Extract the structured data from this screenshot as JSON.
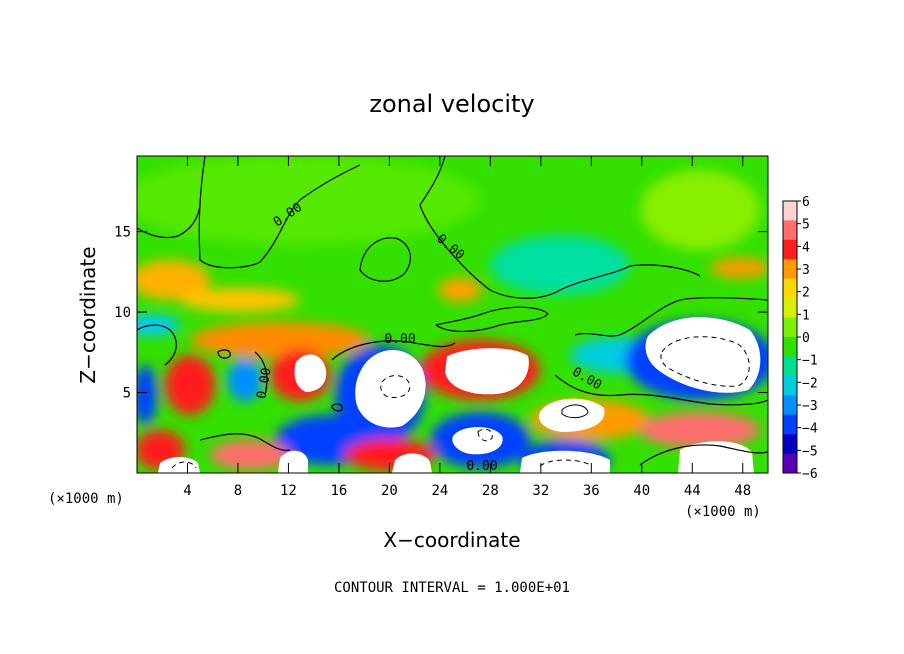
{
  "chart_data": {
    "type": "heatmap",
    "title": "zonal velocity",
    "xlabel": "X−coordinate",
    "ylabel": "Z−coordinate",
    "x_unit_left": "(×1000 m)",
    "x_unit_right": "(×1000 m)",
    "footer": "CONTOUR INTERVAL = 1.000E+01",
    "xlim": [
      0,
      50
    ],
    "ylim": [
      0,
      19.7
    ],
    "x_ticks": [
      4,
      8,
      12,
      16,
      20,
      24,
      28,
      32,
      36,
      40,
      44,
      48
    ],
    "y_ticks": [
      5,
      10,
      15
    ],
    "colorbar": {
      "ticks": [
        6,
        5,
        4,
        3,
        2,
        1,
        0,
        -1,
        -2,
        -3,
        -4,
        -5,
        -6
      ],
      "colors": [
        "#ffd2d2",
        "#ff6d6d",
        "#ff1e1e",
        "#ff9a00",
        "#ffd800",
        "#d8f000",
        "#7cf000",
        "#2ce000",
        "#00e090",
        "#00cde0",
        "#0090ff",
        "#0040ff",
        "#0000c0",
        "#5a00b4"
      ]
    },
    "contour_labels": [
      "0.00",
      "0.00",
      "0.00",
      "0.00",
      "0.00",
      "0.00"
    ],
    "field_summary": "Near-zero flow (green) above ~10 km; strong positive (white/red) and negative (blue) cells below ~9 km"
  }
}
